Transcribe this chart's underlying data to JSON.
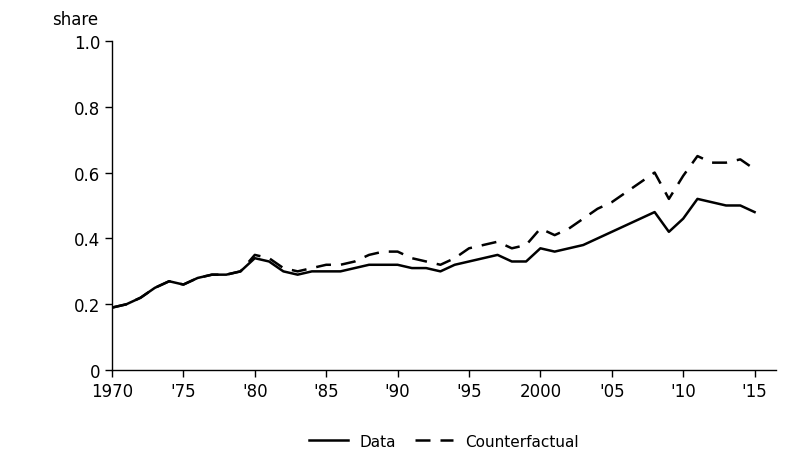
{
  "years": [
    1970,
    1971,
    1972,
    1973,
    1974,
    1975,
    1976,
    1977,
    1978,
    1979,
    1980,
    1981,
    1982,
    1983,
    1984,
    1985,
    1986,
    1987,
    1988,
    1989,
    1990,
    1991,
    1992,
    1993,
    1994,
    1995,
    1996,
    1997,
    1998,
    1999,
    2000,
    2001,
    2002,
    2003,
    2004,
    2005,
    2006,
    2007,
    2008,
    2009,
    2010,
    2011,
    2012,
    2013,
    2014,
    2015
  ],
  "data_line": [
    0.19,
    0.2,
    0.22,
    0.25,
    0.27,
    0.26,
    0.28,
    0.29,
    0.29,
    0.3,
    0.34,
    0.33,
    0.3,
    0.29,
    0.3,
    0.3,
    0.3,
    0.31,
    0.32,
    0.32,
    0.32,
    0.31,
    0.31,
    0.3,
    0.32,
    0.33,
    0.34,
    0.35,
    0.33,
    0.33,
    0.37,
    0.36,
    0.37,
    0.38,
    0.4,
    0.42,
    0.44,
    0.46,
    0.48,
    0.42,
    0.46,
    0.52,
    0.51,
    0.5,
    0.5,
    0.48
  ],
  "counterfactual_line": [
    0.19,
    0.2,
    0.22,
    0.25,
    0.27,
    0.26,
    0.28,
    0.29,
    0.29,
    0.3,
    0.35,
    0.34,
    0.31,
    0.3,
    0.31,
    0.32,
    0.32,
    0.33,
    0.35,
    0.36,
    0.36,
    0.34,
    0.33,
    0.32,
    0.34,
    0.37,
    0.38,
    0.39,
    0.37,
    0.38,
    0.43,
    0.41,
    0.43,
    0.46,
    0.49,
    0.51,
    0.54,
    0.57,
    0.6,
    0.52,
    0.59,
    0.65,
    0.63,
    0.63,
    0.64,
    0.61
  ],
  "ylabel": "share",
  "ylim": [
    0,
    1.0
  ],
  "yticks": [
    0,
    0.2,
    0.4,
    0.6,
    0.8,
    1.0
  ],
  "ytick_labels": [
    "0",
    "0.2",
    "0.4",
    "0.6",
    "0.8",
    "1.0"
  ],
  "xtick_labels": [
    "1970",
    "'75",
    "'80",
    "'85",
    "'90",
    "'95",
    "2000",
    "'05",
    "'10",
    "'15"
  ],
  "xtick_positions": [
    1970,
    1975,
    1980,
    1985,
    1990,
    1995,
    2000,
    2005,
    2010,
    2015
  ],
  "data_label": "Data",
  "counterfactual_label": "Counterfactual",
  "line_color": "#000000",
  "linewidth": 1.8,
  "background_color": "#ffffff",
  "xlim": [
    1970,
    2016.5
  ],
  "font_size": 12,
  "legend_fontsize": 11
}
